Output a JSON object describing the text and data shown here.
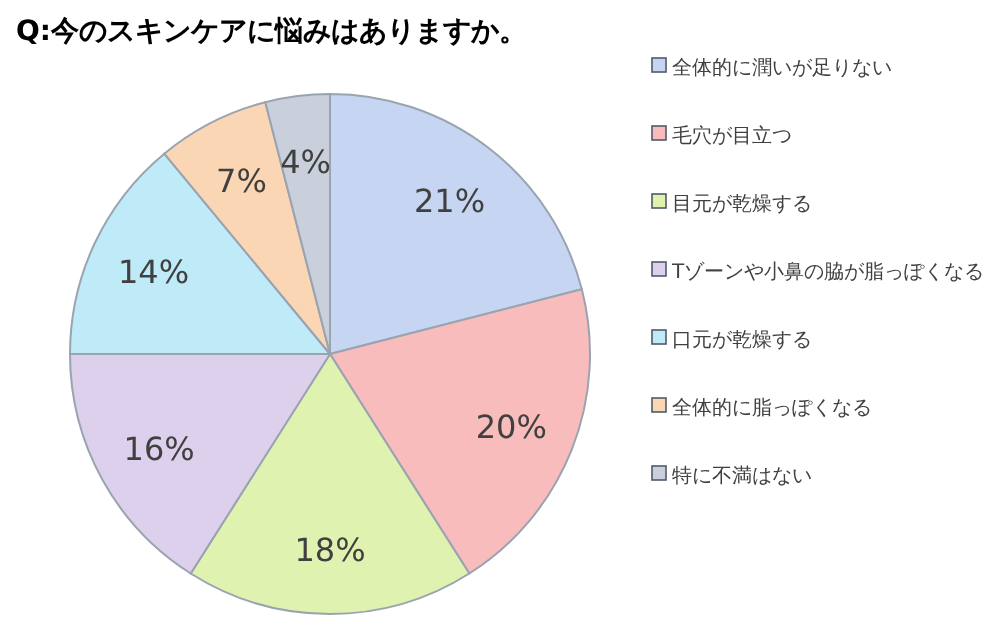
{
  "chart_data": {
    "type": "pie",
    "title": "Q:今のスキンケアに悩みはありますか。",
    "categories": [
      "全体的に潤いが足りない",
      "毛穴が目立つ",
      "目元が乾燥する",
      "Tゾーンや小鼻の脇が脂っぽくなる",
      "口元が乾燥する",
      "全体的に脂っぽくなる",
      "特に不満はない"
    ],
    "values": [
      21,
      20,
      18,
      16,
      14,
      7,
      4
    ],
    "value_labels": [
      "21%",
      "20%",
      "18%",
      "16%",
      "14%",
      "7%",
      "4%"
    ],
    "colors": [
      "#c5d5f2",
      "#f8bcbc",
      "#dff2b0",
      "#dcd0ec",
      "#bfeaf8",
      "#fbd6b4",
      "#c9d0dc"
    ],
    "legend": "right"
  }
}
